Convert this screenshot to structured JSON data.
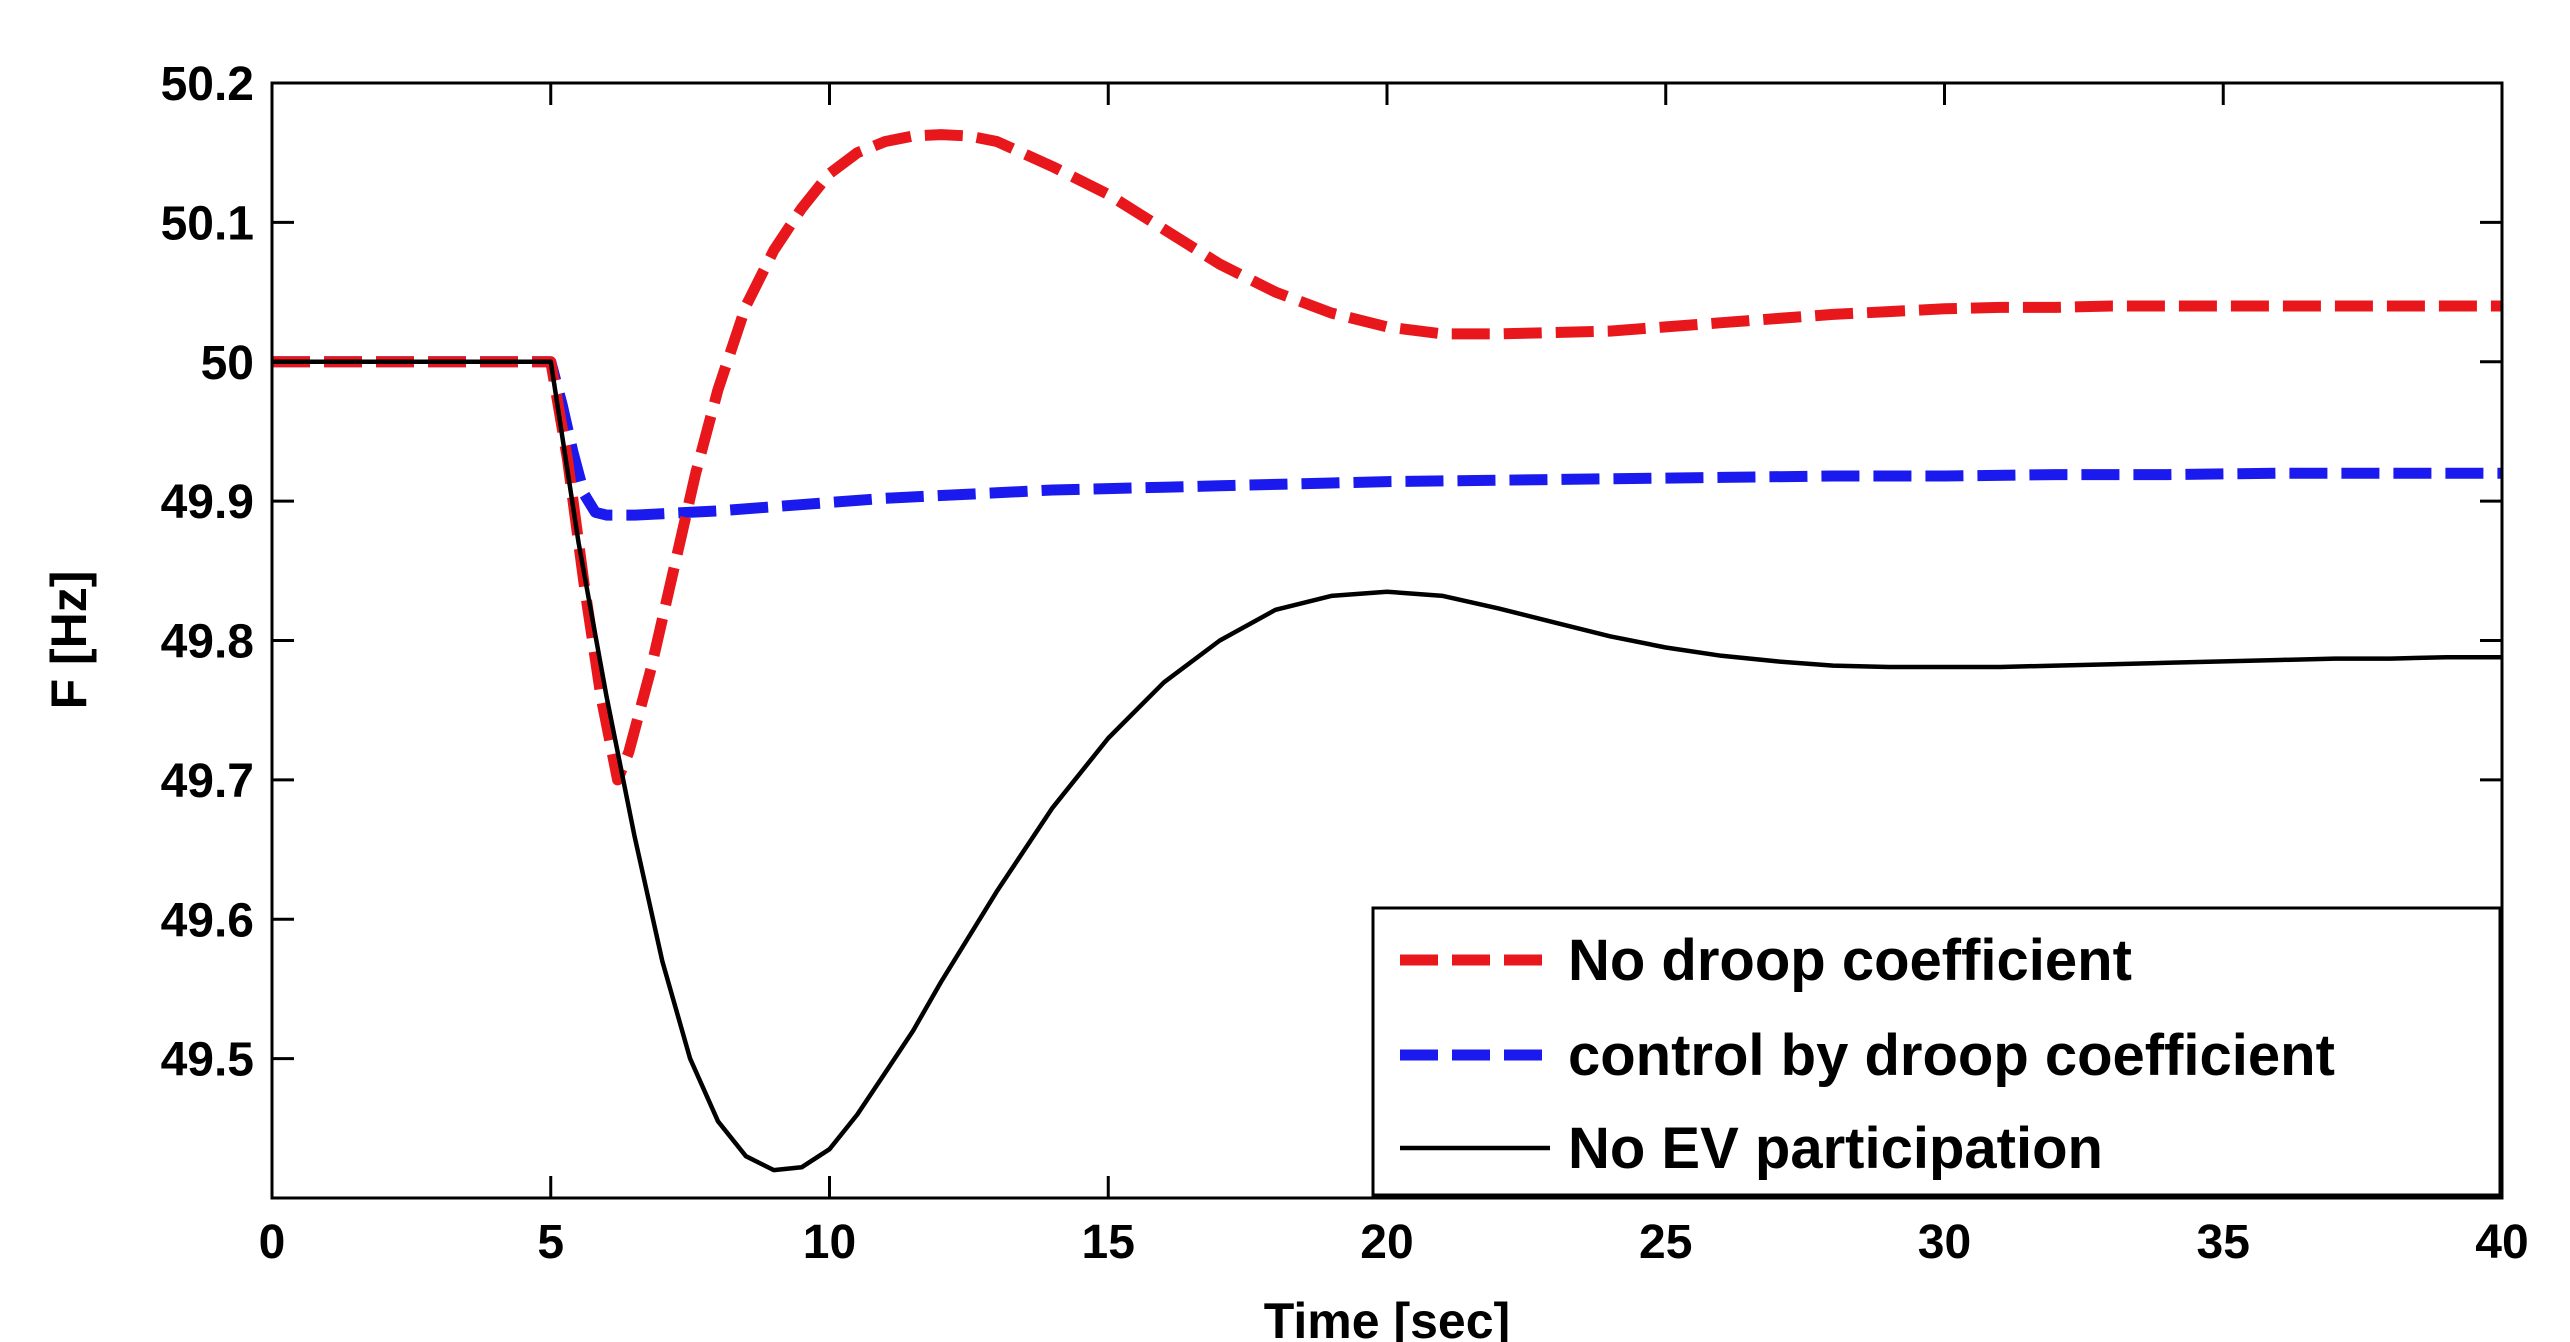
{
  "chart_data": {
    "type": "line",
    "title": "",
    "xlabel": "Time [sec]",
    "ylabel": "F [Hz]",
    "xlim": [
      0,
      40
    ],
    "ylim": [
      49.4,
      50.2
    ],
    "xticks": [
      0,
      5,
      10,
      15,
      20,
      25,
      30,
      35,
      40
    ],
    "xtick_labels": [
      "0",
      "5",
      "10",
      "15",
      "20",
      "25",
      "30",
      "35",
      "40"
    ],
    "yticks": [
      49.5,
      49.6,
      49.7,
      49.8,
      49.9,
      50.0,
      50.1,
      50.2
    ],
    "ytick_labels": [
      "49.5",
      "49.6",
      "49.7",
      "49.8",
      "49.9",
      "50",
      "50.1",
      "50.2"
    ],
    "grid": false,
    "legend_position": "bottom-right",
    "series": [
      {
        "name": "No droop coefficient",
        "color": "#e8171c",
        "style": "dashed",
        "x": [
          0,
          5,
          5.3,
          5.6,
          5.9,
          6.2,
          6.4,
          6.8,
          7.2,
          7.6,
          8.0,
          8.5,
          9.0,
          9.5,
          10.0,
          10.5,
          11.0,
          11.5,
          12.0,
          12.5,
          13.0,
          14.0,
          15.0,
          16.0,
          17.0,
          18.0,
          19.0,
          20.0,
          21.0,
          22.0,
          23.0,
          24.0,
          25.0,
          26.0,
          27.0,
          28.0,
          29.0,
          30.0,
          31.0,
          32.0,
          33.0,
          34.0,
          35.0,
          36.0,
          37.0,
          38.0,
          39.0,
          40.0
        ],
        "values": [
          50.0,
          50.0,
          49.93,
          49.84,
          49.76,
          49.7,
          49.72,
          49.78,
          49.85,
          49.92,
          49.98,
          50.04,
          50.08,
          50.11,
          50.135,
          50.15,
          50.158,
          50.162,
          50.163,
          50.162,
          50.158,
          50.14,
          50.12,
          50.095,
          50.07,
          50.05,
          50.035,
          50.025,
          50.02,
          50.02,
          50.021,
          50.022,
          50.025,
          50.028,
          50.031,
          50.034,
          50.036,
          50.038,
          50.039,
          50.039,
          50.04,
          50.04,
          50.04,
          50.04,
          50.04,
          50.04,
          50.04,
          50.04
        ]
      },
      {
        "name": "control by droop coefficient",
        "color": "#1a1aee",
        "style": "dashed",
        "x": [
          0,
          5,
          5.2,
          5.4,
          5.6,
          5.8,
          6.0,
          6.5,
          7.0,
          8.0,
          9.0,
          10.0,
          11.0,
          12.0,
          13.0,
          14.0,
          15.0,
          16.0,
          17.0,
          18.0,
          19.0,
          20.0,
          22.0,
          24.0,
          26.0,
          28.0,
          30.0,
          32.0,
          34.0,
          36.0,
          38.0,
          40.0
        ],
        "values": [
          50.0,
          50.0,
          49.97,
          49.935,
          49.905,
          49.892,
          49.89,
          49.89,
          49.891,
          49.893,
          49.896,
          49.899,
          49.902,
          49.904,
          49.906,
          49.908,
          49.909,
          49.91,
          49.911,
          49.912,
          49.913,
          49.914,
          49.915,
          49.916,
          49.917,
          49.918,
          49.918,
          49.919,
          49.919,
          49.92,
          49.92,
          49.92
        ]
      },
      {
        "name": "No EV participation",
        "color": "#000000",
        "style": "solid",
        "x": [
          0,
          5,
          5.5,
          6.0,
          6.5,
          7.0,
          7.5,
          8.0,
          8.5,
          9.0,
          9.5,
          10.0,
          10.5,
          11.0,
          11.5,
          12.0,
          13.0,
          14.0,
          15.0,
          16.0,
          17.0,
          18.0,
          19.0,
          20.0,
          21.0,
          22.0,
          23.0,
          24.0,
          25.0,
          26.0,
          27.0,
          28.0,
          29.0,
          30.0,
          31.0,
          32.0,
          33.0,
          34.0,
          35.0,
          36.0,
          37.0,
          38.0,
          39.0,
          40.0
        ],
        "values": [
          50.0,
          50.0,
          49.87,
          49.76,
          49.66,
          49.57,
          49.5,
          49.455,
          49.43,
          49.42,
          49.422,
          49.435,
          49.46,
          49.49,
          49.52,
          49.555,
          49.62,
          49.68,
          49.73,
          49.77,
          49.8,
          49.822,
          49.832,
          49.835,
          49.832,
          49.823,
          49.813,
          49.803,
          49.795,
          49.789,
          49.785,
          49.782,
          49.781,
          49.781,
          49.781,
          49.782,
          49.783,
          49.784,
          49.785,
          49.786,
          49.787,
          49.787,
          49.788,
          49.788
        ]
      }
    ]
  }
}
